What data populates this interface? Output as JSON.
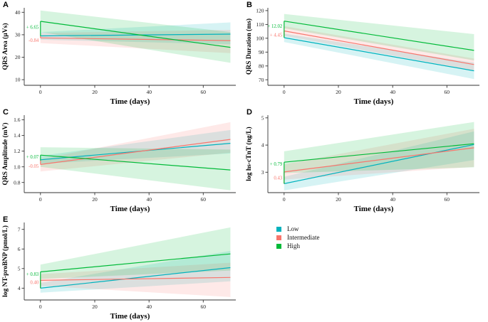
{
  "colors": {
    "low": "#00B2BD",
    "intermediate": "#F8766D",
    "high": "#00BA38",
    "axis": "#333333",
    "tick_text": "#1a1a1a"
  },
  "legend": {
    "items": [
      {
        "key": "low",
        "label": "Low"
      },
      {
        "key": "intermediate",
        "label": "Intermediate"
      },
      {
        "key": "high",
        "label": "High"
      }
    ]
  },
  "chart_data": [
    {
      "type": "line",
      "panel": "A",
      "ylabel": "QRS Area (µVs)",
      "xlabel": "Time (days)",
      "x": [
        0,
        70
      ],
      "xlim": [
        -6,
        72
      ],
      "xticks": [
        0,
        20,
        40,
        60
      ],
      "ylim": [
        7.5,
        42
      ],
      "yticks": [
        {
          "v": 10,
          "label": "10"
        },
        {
          "v": 20,
          "label": "20"
        },
        {
          "v": 30,
          "label": "30"
        },
        {
          "v": 40,
          "label": "40"
        }
      ],
      "series": [
        {
          "name": "Low",
          "color_key": "low",
          "baseline": 29.5,
          "values": [
            29.5,
            30.3
          ],
          "ci_low": [
            27.8,
            25.8
          ],
          "ci_high": [
            31.2,
            35.5
          ]
        },
        {
          "name": "Intermediate",
          "color_key": "intermediate",
          "baseline": 29.4,
          "values": [
            28.6,
            27.4
          ],
          "ci_low": [
            26.3,
            21.8
          ],
          "ci_high": [
            30.8,
            32.2
          ]
        },
        {
          "name": "High",
          "color_key": "high",
          "baseline": 29.4,
          "values": [
            36.0,
            24.4
          ],
          "ci_low": [
            31.2,
            17.5
          ],
          "ci_high": [
            40.8,
            31.2
          ]
        }
      ],
      "annotations": [
        {
          "text": "+ 6.65",
          "color_key": "high",
          "y": 33.4
        },
        {
          "text": "-0.84",
          "color_key": "intermediate",
          "y": 27.5
        }
      ]
    },
    {
      "type": "line",
      "panel": "B",
      "ylabel": "QRS Duration (ms)",
      "xlabel": "Time (days)",
      "x": [
        0,
        70
      ],
      "xlim": [
        -6,
        72
      ],
      "xticks": [
        0,
        20,
        40,
        60
      ],
      "ylim": [
        66,
        122
      ],
      "yticks": [
        {
          "v": 70,
          "label": "70"
        },
        {
          "v": 80,
          "label": "80"
        },
        {
          "v": 90,
          "label": "90"
        },
        {
          "v": 100,
          "label": "100"
        },
        {
          "v": 110,
          "label": "110"
        },
        {
          "v": 120,
          "label": "120"
        }
      ],
      "series": [
        {
          "name": "Low",
          "color_key": "low",
          "baseline": 100.4,
          "values": [
            100.4,
            76.5
          ],
          "ci_low": [
            97.3,
            70.5
          ],
          "ci_high": [
            103.3,
            82.3
          ]
        },
        {
          "name": "Intermediate",
          "color_key": "intermediate",
          "baseline": 100.9,
          "values": [
            105.3,
            81.0
          ],
          "ci_low": [
            101.8,
            76.8
          ],
          "ci_high": [
            108.8,
            85.3
          ]
        },
        {
          "name": "High",
          "color_key": "high",
          "baseline": 100.4,
          "values": [
            112.4,
            91.2
          ],
          "ci_low": [
            107.2,
            84.0
          ],
          "ci_high": [
            117.6,
            103.0
          ]
        }
      ],
      "annotations": [
        {
          "text": "+ 12.02",
          "color_key": "high",
          "y": 108.8
        },
        {
          "text": "+ 4.45",
          "color_key": "intermediate",
          "y": 102.3
        }
      ]
    },
    {
      "type": "line",
      "panel": "C",
      "ylabel": "QRS Amplitude (mV)",
      "xlabel": "Time (days)",
      "x": [
        0,
        70
      ],
      "xlim": [
        -6,
        72
      ],
      "xticks": [
        0,
        20,
        40,
        60
      ],
      "ylim": [
        0.67,
        1.66
      ],
      "yticks": [
        {
          "v": 0.8,
          "label": "0.8"
        },
        {
          "v": 1.0,
          "label": "1.0"
        },
        {
          "v": 1.2,
          "label": "1.2"
        },
        {
          "v": 1.4,
          "label": "1.4"
        },
        {
          "v": 1.6,
          "label": "1.6"
        }
      ],
      "series": [
        {
          "name": "Low",
          "color_key": "low",
          "baseline": 1.09,
          "values": [
            1.09,
            1.3
          ],
          "ci_low": [
            1.04,
            1.17
          ],
          "ci_high": [
            1.14,
            1.47
          ]
        },
        {
          "name": "Intermediate",
          "color_key": "intermediate",
          "baseline": 1.08,
          "values": [
            1.03,
            1.35
          ],
          "ci_low": [
            0.94,
            1.18
          ],
          "ci_high": [
            1.1,
            1.57
          ]
        },
        {
          "name": "High",
          "color_key": "high",
          "baseline": 1.08,
          "values": [
            1.15,
            0.96
          ],
          "ci_low": [
            1.0,
            0.7
          ],
          "ci_high": [
            1.25,
            1.22
          ]
        }
      ],
      "annotations": [
        {
          "text": "+ 0.07",
          "color_key": "high",
          "y": 1.125
        },
        {
          "text": "-0.05",
          "color_key": "intermediate",
          "y": 1.01
        }
      ]
    },
    {
      "type": "line",
      "panel": "D",
      "ylabel": "log hs-cTnT (ng/L)",
      "xlabel": "Time (days)",
      "x": [
        0,
        70
      ],
      "xlim": [
        -6,
        72
      ],
      "xticks": [
        0,
        20,
        40,
        60
      ],
      "ylim": [
        2.25,
        5.1
      ],
      "yticks": [
        {
          "v": 3,
          "label": "3"
        },
        {
          "v": 4,
          "label": "4"
        },
        {
          "v": 5,
          "label": "5"
        }
      ],
      "series": [
        {
          "name": "Low",
          "color_key": "low",
          "baseline": 2.58,
          "values": [
            2.58,
            4.02
          ],
          "ci_low": [
            2.33,
            3.45
          ],
          "ci_high": [
            2.83,
            4.5
          ]
        },
        {
          "name": "Intermediate",
          "color_key": "intermediate",
          "baseline": 2.58,
          "values": [
            3.01,
            3.9
          ],
          "ci_low": [
            2.73,
            3.2
          ],
          "ci_high": [
            3.29,
            4.6
          ]
        },
        {
          "name": "High",
          "color_key": "high",
          "baseline": 2.58,
          "values": [
            3.37,
            4.05
          ],
          "ci_low": [
            2.97,
            3.18
          ],
          "ci_high": [
            3.77,
            4.85
          ]
        }
      ],
      "annotations": [
        {
          "text": "+ 0.79",
          "color_key": "high",
          "y": 3.3
        },
        {
          "text": "0.43",
          "color_key": "intermediate",
          "y": 2.8
        }
      ]
    },
    {
      "type": "line",
      "panel": "E",
      "ylabel": "log NT-proBNP (pmol/L)",
      "xlabel": "Time (days)",
      "x": [
        0,
        70
      ],
      "xlim": [
        -6,
        72
      ],
      "xticks": [
        0,
        20,
        40,
        60
      ],
      "ylim": [
        3.4,
        7.35
      ],
      "yticks": [
        {
          "v": 4,
          "label": "4"
        },
        {
          "v": 5,
          "label": "5"
        },
        {
          "v": 6,
          "label": "6"
        },
        {
          "v": 7,
          "label": "7"
        }
      ],
      "series": [
        {
          "name": "Low",
          "color_key": "low",
          "baseline": 4.0,
          "values": [
            4.0,
            5.05
          ],
          "ci_low": [
            3.77,
            4.35
          ],
          "ci_high": [
            4.27,
            5.9
          ]
        },
        {
          "name": "Intermediate",
          "color_key": "intermediate",
          "baseline": 4.0,
          "values": [
            4.4,
            4.55
          ],
          "ci_low": [
            4.12,
            3.55
          ],
          "ci_high": [
            4.72,
            5.3
          ]
        },
        {
          "name": "High",
          "color_key": "high",
          "baseline": 4.0,
          "values": [
            4.83,
            5.75
          ],
          "ci_low": [
            4.47,
            4.9
          ],
          "ci_high": [
            5.2,
            7.1
          ]
        }
      ],
      "annotations": [
        {
          "text": "+ 0.83",
          "color_key": "high",
          "y": 4.72
        },
        {
          "text": "0.40",
          "color_key": "intermediate",
          "y": 4.3
        }
      ]
    }
  ]
}
